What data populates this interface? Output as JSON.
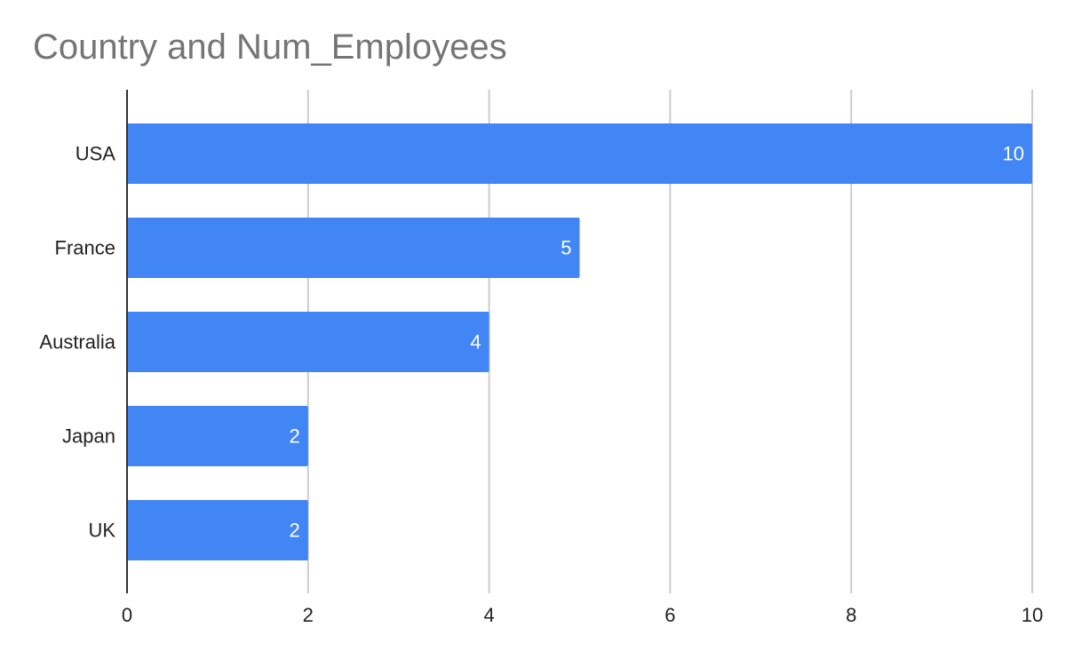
{
  "chart_data": {
    "type": "bar",
    "orientation": "horizontal",
    "title": "Country and Num_Employees",
    "xlabel": "",
    "ylabel": "",
    "categories": [
      "USA",
      "France",
      "Australia",
      "Japan",
      "UK"
    ],
    "values": [
      10,
      5,
      4,
      2,
      2
    ],
    "data_labels": [
      "10",
      "5",
      "4",
      "2",
      "2"
    ],
    "xlim": [
      0,
      10
    ],
    "xticks": [
      0,
      2,
      4,
      6,
      8,
      10
    ],
    "xtick_labels": [
      "0",
      "2",
      "4",
      "6",
      "8",
      "10"
    ],
    "grid": "vertical",
    "legend": "none",
    "colors": {
      "bar": "#4285f4",
      "grid": "#cccccc",
      "axis": "#333333",
      "title": "#757575"
    }
  }
}
